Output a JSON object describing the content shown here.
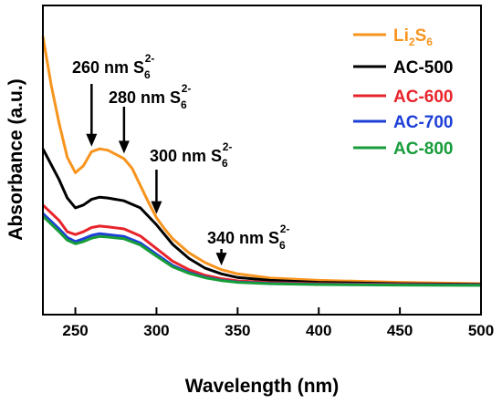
{
  "chart_data": {
    "type": "line",
    "xlabel": "Wavelength (nm)",
    "ylabel": "Absorbance (a.u.)",
    "xlim": [
      230,
      500
    ],
    "x_ticks": [
      250,
      300,
      350,
      400,
      450,
      500
    ],
    "y_ticks": [],
    "grid": false,
    "legend_placement": "top-right",
    "series": [
      {
        "name": "Li2S6",
        "name_main": "Li",
        "name_sub1": "2",
        "name_mid": "S",
        "name_sub2": "6",
        "color": "#f7941d",
        "points": [
          [
            230,
            8.9
          ],
          [
            235,
            7.2
          ],
          [
            240,
            5.8
          ],
          [
            245,
            4.6
          ],
          [
            250,
            4.05
          ],
          [
            255,
            4.3
          ],
          [
            260,
            4.8
          ],
          [
            265,
            4.9
          ],
          [
            270,
            4.85
          ],
          [
            275,
            4.7
          ],
          [
            280,
            4.55
          ],
          [
            285,
            4.2
          ],
          [
            290,
            3.6
          ],
          [
            295,
            3.0
          ],
          [
            300,
            2.45
          ],
          [
            305,
            2.05
          ],
          [
            310,
            1.7
          ],
          [
            320,
            1.2
          ],
          [
            330,
            0.85
          ],
          [
            340,
            0.6
          ],
          [
            350,
            0.45
          ],
          [
            370,
            0.3
          ],
          [
            400,
            0.22
          ],
          [
            450,
            0.15
          ],
          [
            500,
            0.1
          ]
        ]
      },
      {
        "name": "AC-500",
        "color": "#000000",
        "points": [
          [
            230,
            4.9
          ],
          [
            240,
            3.8
          ],
          [
            245,
            3.15
          ],
          [
            250,
            2.8
          ],
          [
            255,
            2.9
          ],
          [
            260,
            3.1
          ],
          [
            265,
            3.18
          ],
          [
            270,
            3.15
          ],
          [
            280,
            3.05
          ],
          [
            290,
            2.8
          ],
          [
            300,
            2.2
          ],
          [
            310,
            1.5
          ],
          [
            320,
            1.0
          ],
          [
            330,
            0.65
          ],
          [
            340,
            0.45
          ],
          [
            350,
            0.32
          ],
          [
            370,
            0.22
          ],
          [
            400,
            0.15
          ],
          [
            450,
            0.1
          ],
          [
            500,
            0.08
          ]
        ]
      },
      {
        "name": "AC-600",
        "color": "#e8242b",
        "points": [
          [
            230,
            2.9
          ],
          [
            240,
            2.35
          ],
          [
            245,
            1.95
          ],
          [
            250,
            1.85
          ],
          [
            255,
            1.95
          ],
          [
            260,
            2.1
          ],
          [
            265,
            2.15
          ],
          [
            270,
            2.12
          ],
          [
            280,
            2.05
          ],
          [
            290,
            1.8
          ],
          [
            300,
            1.35
          ],
          [
            310,
            0.9
          ],
          [
            320,
            0.6
          ],
          [
            330,
            0.4
          ],
          [
            340,
            0.28
          ],
          [
            350,
            0.2
          ],
          [
            370,
            0.14
          ],
          [
            400,
            0.1
          ],
          [
            450,
            0.08
          ],
          [
            500,
            0.06
          ]
        ]
      },
      {
        "name": "AC-700",
        "color": "#1e3fd8",
        "points": [
          [
            230,
            2.6
          ],
          [
            240,
            2.05
          ],
          [
            245,
            1.75
          ],
          [
            250,
            1.6
          ],
          [
            255,
            1.7
          ],
          [
            260,
            1.82
          ],
          [
            265,
            1.88
          ],
          [
            270,
            1.85
          ],
          [
            280,
            1.78
          ],
          [
            290,
            1.55
          ],
          [
            300,
            1.15
          ],
          [
            310,
            0.75
          ],
          [
            320,
            0.5
          ],
          [
            330,
            0.33
          ],
          [
            340,
            0.22
          ],
          [
            350,
            0.16
          ],
          [
            370,
            0.11
          ],
          [
            400,
            0.08
          ],
          [
            450,
            0.06
          ],
          [
            500,
            0.05
          ]
        ]
      },
      {
        "name": "AC-800",
        "color": "#179c3a",
        "points": [
          [
            230,
            2.5
          ],
          [
            240,
            1.95
          ],
          [
            245,
            1.65
          ],
          [
            250,
            1.52
          ],
          [
            255,
            1.6
          ],
          [
            260,
            1.72
          ],
          [
            265,
            1.78
          ],
          [
            270,
            1.76
          ],
          [
            280,
            1.7
          ],
          [
            290,
            1.48
          ],
          [
            300,
            1.08
          ],
          [
            310,
            0.7
          ],
          [
            320,
            0.47
          ],
          [
            330,
            0.31
          ],
          [
            340,
            0.21
          ],
          [
            350,
            0.15
          ],
          [
            370,
            0.1
          ],
          [
            400,
            0.07
          ],
          [
            450,
            0.05
          ],
          [
            500,
            0.04
          ]
        ]
      }
    ],
    "annotations": [
      {
        "x": 260,
        "y": 4.85,
        "label_main": "260 nm S",
        "label_sub": "6",
        "label_sup": "2-"
      },
      {
        "x": 280,
        "y": 4.6,
        "label_main": "280 nm S",
        "label_sub": "6",
        "label_sup": "2-"
      },
      {
        "x": 300,
        "y": 2.45,
        "label_main": "300 nm S",
        "label_sub": "6",
        "label_sup": "2-"
      },
      {
        "x": 340,
        "y": 0.62,
        "label_main": "340 nm S",
        "label_sub": "6",
        "label_sup": "2-"
      }
    ]
  }
}
